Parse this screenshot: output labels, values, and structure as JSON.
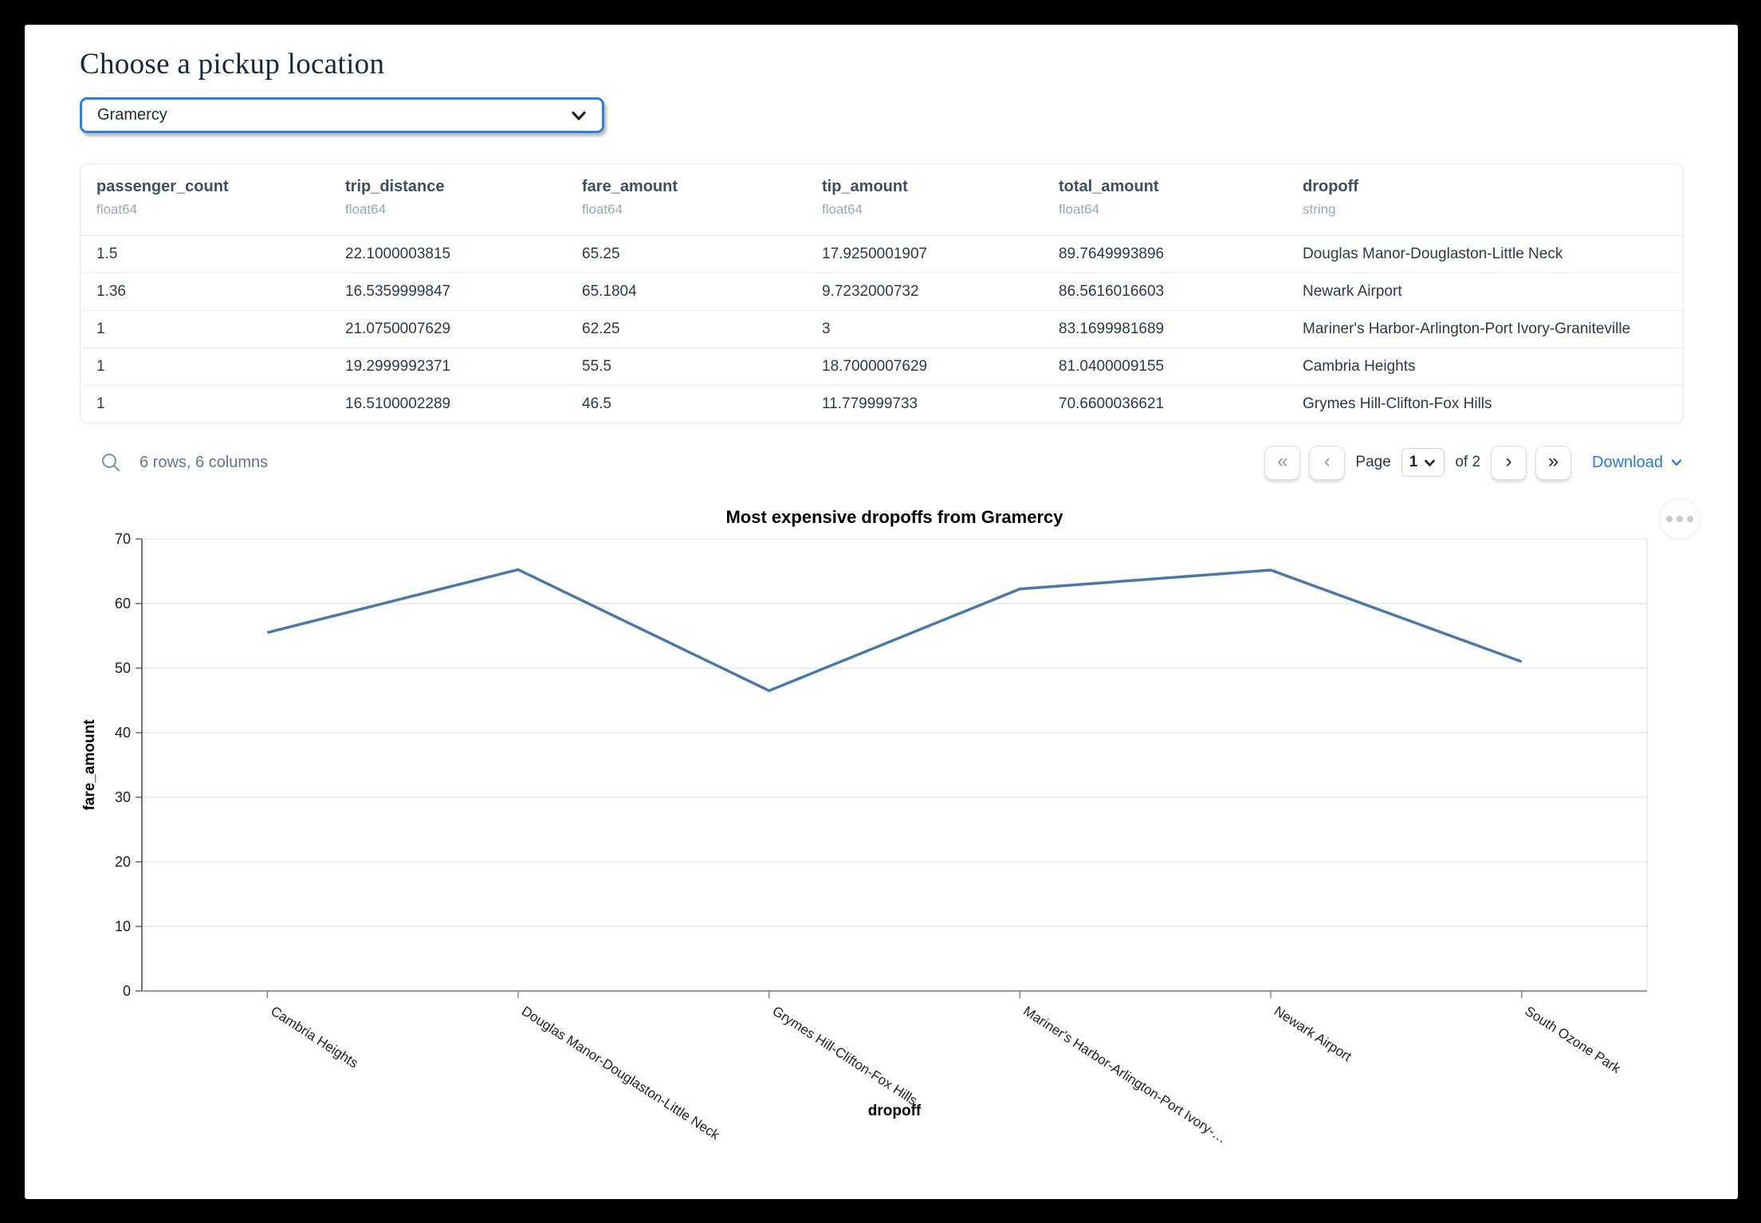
{
  "page": {
    "title": "Choose a pickup location"
  },
  "pickup": {
    "value": "Gramercy"
  },
  "table": {
    "columns": [
      {
        "name": "passenger_count",
        "dtype": "float64"
      },
      {
        "name": "trip_distance",
        "dtype": "float64"
      },
      {
        "name": "fare_amount",
        "dtype": "float64"
      },
      {
        "name": "tip_amount",
        "dtype": "float64"
      },
      {
        "name": "total_amount",
        "dtype": "float64"
      },
      {
        "name": "dropoff",
        "dtype": "string"
      }
    ],
    "rows": [
      [
        "1.5",
        "22.1000003815",
        "65.25",
        "17.9250001907",
        "89.7649993896",
        "Douglas Manor-Douglaston-Little Neck"
      ],
      [
        "1.36",
        "16.5359999847",
        "65.1804",
        "9.7232000732",
        "86.5616016603",
        "Newark Airport"
      ],
      [
        "1",
        "21.0750007629",
        "62.25",
        "3",
        "83.1699981689",
        "Mariner's Harbor-Arlington-Port Ivory-Graniteville"
      ],
      [
        "1",
        "19.2999992371",
        "55.5",
        "18.7000007629",
        "81.0400009155",
        "Cambria Heights"
      ],
      [
        "1",
        "16.5100002289",
        "46.5",
        "11.779999733",
        "70.6600036621",
        "Grymes Hill-Clifton-Fox Hills"
      ]
    ],
    "summary": "6 rows, 6 columns",
    "pagination": {
      "first": "«",
      "prev": "‹",
      "next": "›",
      "last": "»",
      "page_label": "Page",
      "page_value": "1",
      "of_label": "of 2"
    },
    "download_label": "Download"
  },
  "chart_data": {
    "type": "line",
    "title": "Most expensive dropoffs from Gramercy",
    "categories": [
      "Cambria Heights",
      "Douglas Manor-Douglaston-Little Neck",
      "Grymes Hill-Clifton-Fox Hills",
      "Mariner's Harbor-Arlington-Port Ivory-Graniteville",
      "Newark Airport",
      "South Ozone Park"
    ],
    "x_tick_labels": [
      "Cambria Heights",
      "Douglas Manor-Douglaston-Little Neck",
      "Grymes Hill-Clifton-Fox Hills",
      "Mariner's Harbor-Arlington-Port Ivory-…",
      "Newark Airport",
      "South Ozone Park"
    ],
    "values": [
      55.5,
      65.25,
      46.5,
      62.25,
      65.1804,
      51
    ],
    "xlabel": "dropoff",
    "ylabel": "fare_amount",
    "ylim": [
      0,
      70
    ],
    "y_ticks": [
      0,
      10,
      20,
      30,
      40,
      50,
      60,
      70
    ],
    "grid": true,
    "legend": false,
    "line_color": "#4c78a8"
  },
  "colors": {
    "select_border_blue": "#2f7fe0",
    "link_blue": "#2878d8",
    "chart_line_blue": "#4c78a8"
  }
}
